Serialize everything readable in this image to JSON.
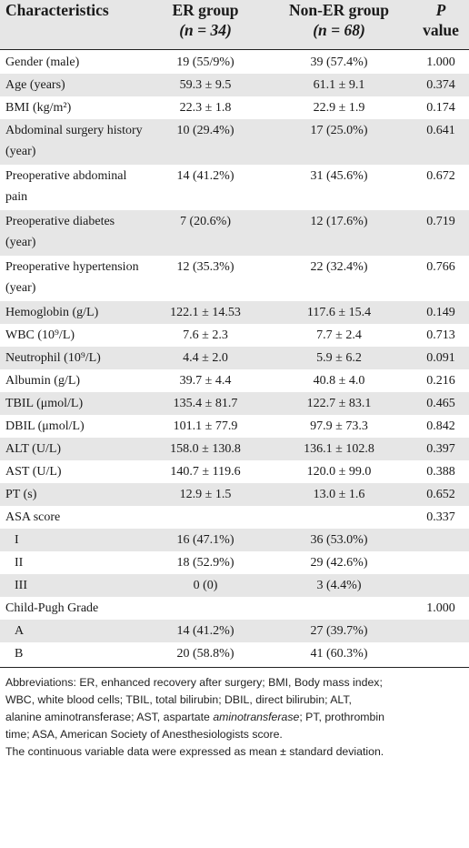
{
  "header": {
    "characteristics": "Characteristics",
    "er_group": "ER group",
    "er_n": "(n = 34)",
    "non_er_group": "Non-ER group",
    "non_er_n": "(n = 68)",
    "p": "P",
    "value": "value"
  },
  "rows": [
    {
      "label": "Gender (male)",
      "er": "19 (55/9%)",
      "ner": "39 (57.4%)",
      "p": "1.000"
    },
    {
      "label": "Age (years)",
      "er": "59.3 ± 9.5",
      "ner": "61.1 ± 9.1",
      "p": "0.374"
    },
    {
      "label": "BMI (kg/m²)",
      "er": "22.3 ± 1.8",
      "ner": "22.9 ± 1.9",
      "p": "0.174"
    },
    {
      "label": "Abdominal surgery history",
      "label2": "(year)",
      "er": "10 (29.4%)",
      "ner": "17 (25.0%)",
      "p": "0.641"
    },
    {
      "label": "Preoperative abdominal",
      "label2": "pain",
      "er": "14 (41.2%)",
      "ner": "31 (45.6%)",
      "p": "0.672"
    },
    {
      "label": "Preoperative diabetes",
      "label2": "(year)",
      "er": "7 (20.6%)",
      "ner": "12 (17.6%)",
      "p": "0.719"
    },
    {
      "label": "Preoperative hypertension",
      "label2": "(year)",
      "er": "12 (35.3%)",
      "ner": "22 (32.4%)",
      "p": "0.766"
    },
    {
      "label": "Hemoglobin (g/L)",
      "er": "122.1 ± 14.53",
      "ner": "117.6 ± 15.4",
      "p": "0.149"
    },
    {
      "label": "WBC (10⁹/L)",
      "er": "7.6 ± 2.3",
      "ner": "7.7 ± 2.4",
      "p": "0.713"
    },
    {
      "label": "Neutrophil (10⁹/L)",
      "er": "4.4 ± 2.0",
      "ner": "5.9 ± 6.2",
      "p": "0.091"
    },
    {
      "label": "Albumin (g/L)",
      "er": "39.7 ± 4.4",
      "ner": "40.8 ± 4.0",
      "p": "0.216"
    },
    {
      "label": "TBIL (μmol/L)",
      "er": "135.4 ± 81.7",
      "ner": "122.7 ± 83.1",
      "p": "0.465"
    },
    {
      "label": "DBIL (μmol/L)",
      "er": "101.1 ± 77.9",
      "ner": "97.9 ± 73.3",
      "p": "0.842"
    },
    {
      "label": "ALT (U/L)",
      "er": "158.0 ± 130.8",
      "ner": "136.1 ± 102.8",
      "p": "0.397"
    },
    {
      "label": "AST (U/L)",
      "er": "140.7 ± 119.6",
      "ner": "120.0 ± 99.0",
      "p": "0.388"
    },
    {
      "label": "PT (s)",
      "er": "12.9 ± 1.5",
      "ner": "13.0 ± 1.6",
      "p": "0.652"
    },
    {
      "label": "ASA score",
      "er": "",
      "ner": "",
      "p": "0.337"
    },
    {
      "label": "I",
      "indent": true,
      "er": "16 (47.1%)",
      "ner": "36 (53.0%)",
      "p": ""
    },
    {
      "label": "II",
      "indent": true,
      "er": "18 (52.9%)",
      "ner": "29 (42.6%)",
      "p": ""
    },
    {
      "label": "III",
      "indent": true,
      "er": "0 (0)",
      "ner": "3 (4.4%)",
      "p": ""
    },
    {
      "label": "Child-Pugh Grade",
      "er": "",
      "ner": "",
      "p": "1.000"
    },
    {
      "label": "A",
      "indent": true,
      "er": "14 (41.2%)",
      "ner": "27 (39.7%)",
      "p": ""
    },
    {
      "label": "B",
      "indent": true,
      "er": "20 (58.8%)",
      "ner": "41 (60.3%)",
      "p": ""
    }
  ],
  "footnote": {
    "line1": "Abbreviations: ER, enhanced recovery after surgery; BMI, Body mass index;",
    "line2": "WBC, white blood cells; TBIL, total bilirubin; DBIL, direct bilirubin; ALT,",
    "line3_a": "alanine aminotransferase; AST, aspartate ",
    "line3_b": "aminotransferase",
    "line3_c": "; PT, prothrombin",
    "line4": "time; ASA, American Society of Anesthesiologists score.",
    "line5": "The continuous variable data were expressed as mean ± standard deviation."
  }
}
